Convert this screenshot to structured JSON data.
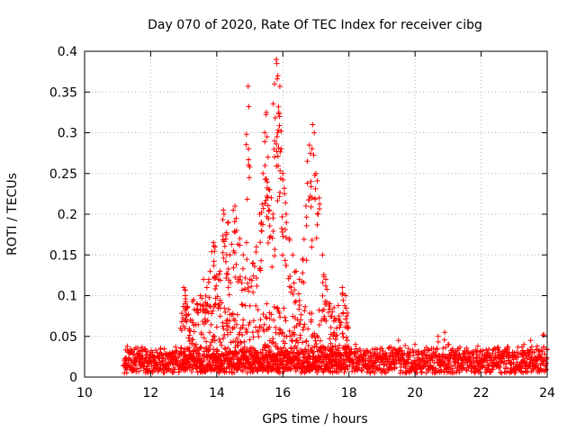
{
  "chart_data": {
    "type": "scatter",
    "title": "Day 070 of 2020, Rate Of TEC Index for receiver cibg",
    "xlabel": "GPS time / hours",
    "ylabel": "ROTI / TECUs",
    "xlim": [
      10,
      24
    ],
    "ylim": [
      0,
      0.4
    ],
    "x_ticks": [
      "10",
      "12",
      "14",
      "16",
      "18",
      "20",
      "22",
      "24"
    ],
    "y_ticks": [
      "0",
      "0.05",
      "0.1",
      "0.15",
      "0.2",
      "0.25",
      "0.3",
      "0.35",
      "0.4"
    ],
    "grid": true,
    "marker": "+",
    "color": "#ff0000",
    "series": [
      {
        "name": "ROTI",
        "description_note": "dense band of points ~0.01-0.04 from 11.2h to 24h; enhanced activity 12.9h-18h",
        "points": [
          [
            11.2,
            0.02
          ],
          [
            11.3,
            0.033
          ],
          [
            11.5,
            0.028
          ],
          [
            11.7,
            0.022
          ],
          [
            11.9,
            0.031
          ],
          [
            12.1,
            0.025
          ],
          [
            12.3,
            0.034
          ],
          [
            12.5,
            0.027
          ],
          [
            12.7,
            0.03
          ],
          [
            12.9,
            0.06
          ],
          [
            13.0,
            0.11
          ],
          [
            13.05,
            0.1
          ],
          [
            13.1,
            0.085
          ],
          [
            13.2,
            0.07
          ],
          [
            13.3,
            0.095
          ],
          [
            13.4,
            0.09
          ],
          [
            13.5,
            0.1
          ],
          [
            13.6,
            0.12
          ],
          [
            13.7,
            0.11
          ],
          [
            13.8,
            0.13
          ],
          [
            13.9,
            0.165
          ],
          [
            13.95,
            0.16
          ],
          [
            14.0,
            0.125
          ],
          [
            14.05,
            0.12
          ],
          [
            14.1,
            0.13
          ],
          [
            14.2,
            0.205
          ],
          [
            14.22,
            0.2
          ],
          [
            14.3,
            0.175
          ],
          [
            14.35,
            0.19
          ],
          [
            14.4,
            0.15
          ],
          [
            14.5,
            0.205
          ],
          [
            14.55,
            0.21
          ],
          [
            14.6,
            0.18
          ],
          [
            14.7,
            0.17
          ],
          [
            14.8,
            0.15
          ],
          [
            14.9,
            0.165
          ],
          [
            14.95,
            0.357
          ],
          [
            14.97,
            0.332
          ],
          [
            15.0,
            0.12
          ],
          [
            15.1,
            0.14
          ],
          [
            15.2,
            0.16
          ],
          [
            15.3,
            0.2
          ],
          [
            15.35,
            0.19
          ],
          [
            15.4,
            0.25
          ],
          [
            15.45,
            0.3
          ],
          [
            15.5,
            0.325
          ],
          [
            15.52,
            0.295
          ],
          [
            15.55,
            0.27
          ],
          [
            15.6,
            0.23
          ],
          [
            15.65,
            0.22
          ],
          [
            15.7,
            0.2
          ],
          [
            15.75,
            0.36
          ],
          [
            15.8,
            0.39
          ],
          [
            15.82,
            0.385
          ],
          [
            15.85,
            0.37
          ],
          [
            15.88,
            0.325
          ],
          [
            15.9,
            0.32
          ],
          [
            15.95,
            0.28
          ],
          [
            16.0,
            0.25
          ],
          [
            16.05,
            0.225
          ],
          [
            16.1,
            0.2
          ],
          [
            16.2,
            0.17
          ],
          [
            16.3,
            0.15
          ],
          [
            16.4,
            0.13
          ],
          [
            16.5,
            0.12
          ],
          [
            16.6,
            0.145
          ],
          [
            16.7,
            0.21
          ],
          [
            16.8,
            0.285
          ],
          [
            16.85,
            0.24
          ],
          [
            16.9,
            0.31
          ],
          [
            16.95,
            0.3
          ],
          [
            17.0,
            0.25
          ],
          [
            17.1,
            0.22
          ],
          [
            17.2,
            0.15
          ],
          [
            17.3,
            0.12
          ],
          [
            17.4,
            0.09
          ],
          [
            17.5,
            0.08
          ],
          [
            17.6,
            0.07
          ],
          [
            17.7,
            0.075
          ],
          [
            17.8,
            0.11
          ],
          [
            17.9,
            0.1
          ],
          [
            18.0,
            0.035
          ],
          [
            18.2,
            0.04
          ],
          [
            18.5,
            0.03
          ],
          [
            18.8,
            0.028
          ],
          [
            19.0,
            0.035
          ],
          [
            19.3,
            0.03
          ],
          [
            19.5,
            0.045
          ],
          [
            19.8,
            0.035
          ],
          [
            20.0,
            0.04
          ],
          [
            20.2,
            0.03
          ],
          [
            20.5,
            0.035
          ],
          [
            20.7,
            0.05
          ],
          [
            20.9,
            0.055
          ],
          [
            21.0,
            0.04
          ],
          [
            21.3,
            0.035
          ],
          [
            21.6,
            0.032
          ],
          [
            21.9,
            0.038
          ],
          [
            22.2,
            0.03
          ],
          [
            22.5,
            0.025
          ],
          [
            22.8,
            0.035
          ],
          [
            23.0,
            0.03
          ],
          [
            23.3,
            0.04
          ],
          [
            23.5,
            0.045
          ],
          [
            23.7,
            0.038
          ],
          [
            23.9,
            0.052
          ]
        ],
        "baseline_band": {
          "x_start": 11.2,
          "x_end": 24,
          "y_min": 0.005,
          "y_max": 0.04,
          "enhanced_region": {
            "x_start": 12.9,
            "x_end": 18.0,
            "y_min": 0.01,
            "y_max": 0.09
          }
        }
      }
    ]
  }
}
